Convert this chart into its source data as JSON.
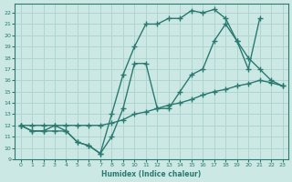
{
  "bg_color": "#cce8e4",
  "grid_color": "#b0d4d0",
  "line_color": "#2a7a70",
  "line_width": 1.0,
  "marker": "+",
  "marker_size": 4,
  "marker_lw": 1.0,
  "xlim": [
    -0.5,
    23.5
  ],
  "ylim": [
    9,
    22.8
  ],
  "xticks": [
    0,
    1,
    2,
    3,
    4,
    5,
    6,
    7,
    8,
    9,
    10,
    11,
    12,
    13,
    14,
    15,
    16,
    17,
    18,
    19,
    20,
    21,
    22,
    23
  ],
  "yticks": [
    9,
    10,
    11,
    12,
    13,
    14,
    15,
    16,
    17,
    18,
    19,
    20,
    21,
    22
  ],
  "xlabel": "Humidex (Indice chaleur)",
  "line1_x": [
    0,
    1,
    2,
    3,
    4,
    5,
    6,
    7,
    8,
    9,
    10,
    11,
    12,
    13,
    14,
    15,
    16,
    17,
    18,
    19,
    20,
    21,
    22,
    23
  ],
  "line1_y": [
    12,
    11.5,
    11.5,
    12,
    11.5,
    10.5,
    10.2,
    9.5,
    13,
    16.5,
    19,
    21,
    21,
    21.5,
    21.5,
    22.2,
    22,
    22.3,
    21.5,
    19.5,
    18,
    17,
    16,
    15.5
  ],
  "line2_x": [
    0,
    1,
    2,
    3,
    4,
    5,
    6,
    7,
    8,
    9,
    10,
    11,
    12,
    13,
    14,
    15,
    16,
    17,
    18,
    19,
    20,
    21,
    22,
    23
  ],
  "line2_y": [
    12,
    12,
    12,
    12,
    12,
    12,
    12,
    12,
    12.2,
    12.5,
    13,
    13.2,
    13.5,
    13.8,
    14,
    14.3,
    14.7,
    15,
    15.2,
    15.5,
    15.7,
    16,
    15.8,
    15.5
  ],
  "line3_x": [
    0,
    1,
    2,
    3,
    4,
    5,
    6,
    7,
    8,
    9,
    10,
    11,
    12,
    13,
    14,
    15,
    16,
    17,
    18,
    19,
    20,
    21
  ],
  "line3_y": [
    12,
    11.5,
    11.5,
    11.5,
    11.5,
    10.5,
    10.2,
    9.5,
    11,
    13.5,
    17.5,
    17.5,
    13.5,
    13.5,
    15,
    16.5,
    17,
    19.5,
    21,
    19.5,
    17,
    21.5
  ]
}
